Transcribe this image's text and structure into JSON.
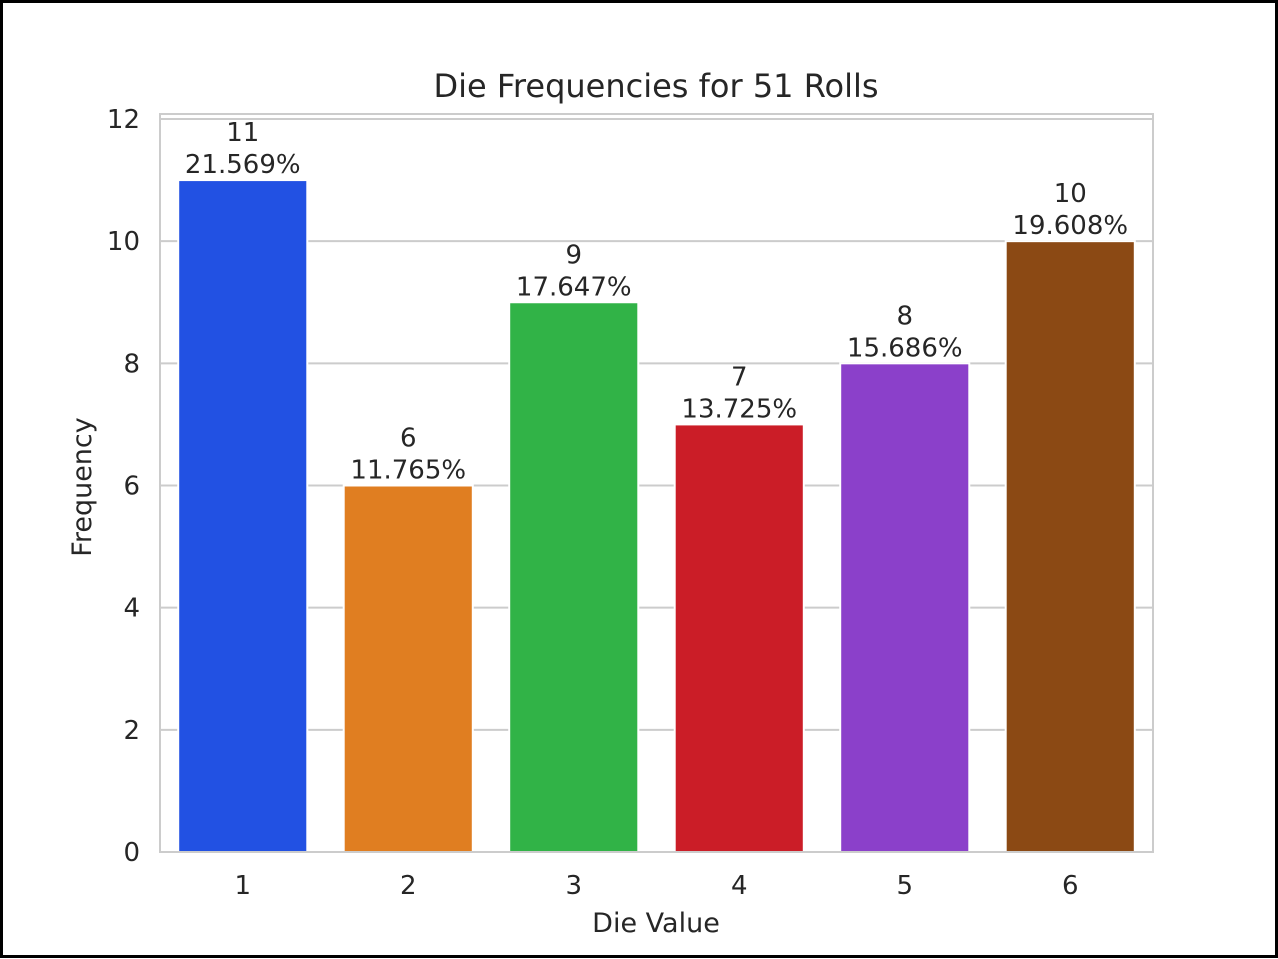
{
  "chart_data": {
    "type": "bar",
    "title": "Die Frequencies for 51 Rolls",
    "xlabel": "Die Value",
    "ylabel": "Frequency",
    "categories": [
      "1",
      "2",
      "3",
      "4",
      "5",
      "6"
    ],
    "values": [
      11,
      6,
      9,
      7,
      8,
      10
    ],
    "percent_labels": [
      "21.569%",
      "11.765%",
      "17.647%",
      "13.725%",
      "15.686%",
      "19.608%"
    ],
    "colors": [
      "#2251e3",
      "#e07e21",
      "#31b347",
      "#cb1d27",
      "#8b40ca",
      "#8b4914"
    ],
    "ylim": [
      0,
      12
    ],
    "yticks": [
      "0",
      "2",
      "4",
      "6",
      "8",
      "10",
      "12"
    ],
    "grid": true,
    "legend": "none"
  }
}
